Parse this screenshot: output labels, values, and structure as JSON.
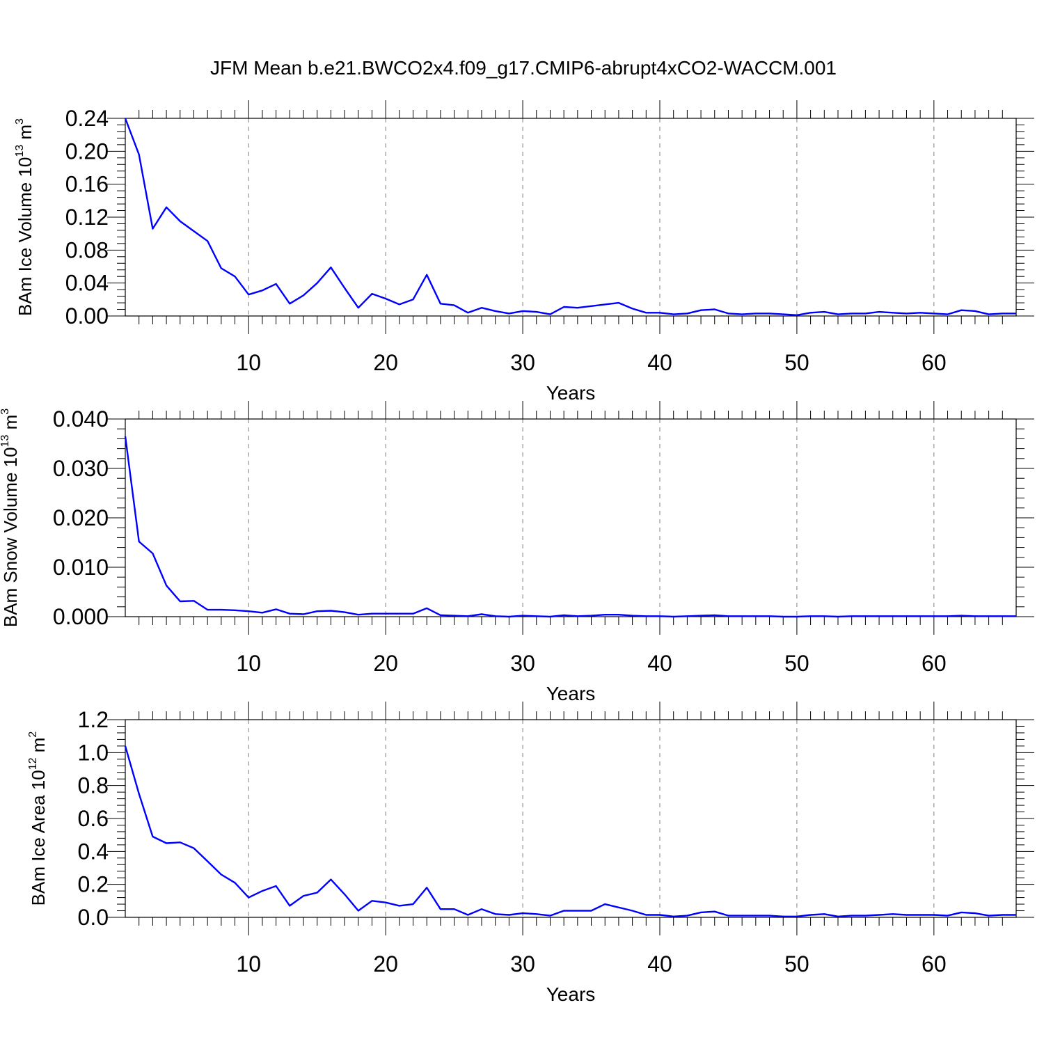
{
  "chart_data": [
    {
      "type": "line",
      "title": "JFM Mean b.e21.BWCO2x4.f09_g17.CMIP6-abrupt4xCO2-WACCM.001",
      "xlabel": "Years",
      "ylabel": {
        "main": "BAm Ice Volume 10",
        "exp": "13",
        "unit": " m",
        "unit_exp": "3"
      },
      "xlim": [
        1,
        66
      ],
      "ylim": [
        0,
        0.24
      ],
      "x_ticks": [
        10,
        20,
        30,
        40,
        50,
        60
      ],
      "x_tick_labels": [
        "10",
        "20",
        "30",
        "40",
        "50",
        "60"
      ],
      "y_ticks": [
        0,
        0.04,
        0.08,
        0.12,
        0.16,
        0.2,
        0.24
      ],
      "y_tick_labels": [
        "0.00",
        "0.04",
        "0.08",
        "0.12",
        "0.16",
        "0.20",
        "0.24"
      ],
      "grid": "vertical dashed at major x ticks",
      "line_color": "#0000ff",
      "series": [
        {
          "name": "BAm Ice Volume",
          "x": [
            1,
            2,
            3,
            4,
            5,
            6,
            7,
            8,
            9,
            10,
            11,
            12,
            13,
            14,
            15,
            16,
            17,
            18,
            19,
            20,
            21,
            22,
            23,
            24,
            25,
            26,
            27,
            28,
            29,
            30,
            31,
            32,
            33,
            34,
            35,
            36,
            37,
            38,
            39,
            40,
            41,
            42,
            43,
            44,
            45,
            46,
            47,
            48,
            49,
            50,
            51,
            52,
            53,
            54,
            55,
            56,
            57,
            58,
            59,
            60,
            61,
            62,
            63,
            64,
            65,
            66
          ],
          "values": [
            0.24,
            0.196,
            0.106,
            0.132,
            0.115,
            0.103,
            0.091,
            0.058,
            0.048,
            0.026,
            0.031,
            0.039,
            0.015,
            0.025,
            0.04,
            0.059,
            0.034,
            0.01,
            0.027,
            0.021,
            0.014,
            0.02,
            0.05,
            0.015,
            0.013,
            0.004,
            0.01,
            0.006,
            0.003,
            0.006,
            0.005,
            0.002,
            0.011,
            0.01,
            0.012,
            0.014,
            0.016,
            0.009,
            0.004,
            0.004,
            0.002,
            0.003,
            0.007,
            0.008,
            0.003,
            0.002,
            0.003,
            0.003,
            0.002,
            0.001,
            0.004,
            0.005,
            0.002,
            0.003,
            0.003,
            0.005,
            0.004,
            0.003,
            0.004,
            0.003,
            0.002,
            0.007,
            0.006,
            0.002,
            0.003,
            0.003
          ]
        }
      ]
    },
    {
      "type": "line",
      "xlabel": "Years",
      "ylabel": {
        "main": "BAm Snow Volume 10",
        "exp": "13",
        "unit": " m",
        "unit_exp": "3"
      },
      "xlim": [
        1,
        66
      ],
      "ylim": [
        0,
        0.04
      ],
      "x_ticks": [
        10,
        20,
        30,
        40,
        50,
        60
      ],
      "x_tick_labels": [
        "10",
        "20",
        "30",
        "40",
        "50",
        "60"
      ],
      "y_ticks": [
        0,
        0.01,
        0.02,
        0.03,
        0.04
      ],
      "y_tick_labels": [
        "0.000",
        "0.010",
        "0.020",
        "0.030",
        "0.040"
      ],
      "grid": "vertical dashed at major x ticks",
      "line_color": "#0000ff",
      "series": [
        {
          "name": "BAm Snow Volume",
          "x": [
            1,
            2,
            3,
            4,
            5,
            6,
            7,
            8,
            9,
            10,
            11,
            12,
            13,
            14,
            15,
            16,
            17,
            18,
            19,
            20,
            21,
            22,
            23,
            24,
            25,
            26,
            27,
            28,
            29,
            30,
            31,
            32,
            33,
            34,
            35,
            36,
            37,
            38,
            39,
            40,
            41,
            42,
            43,
            44,
            45,
            46,
            47,
            48,
            49,
            50,
            51,
            52,
            53,
            54,
            55,
            56,
            57,
            58,
            59,
            60,
            61,
            62,
            63,
            64,
            65,
            66
          ],
          "values": [
            0.0365,
            0.0152,
            0.0128,
            0.0063,
            0.0031,
            0.0032,
            0.0014,
            0.0014,
            0.0013,
            0.0011,
            0.0008,
            0.0015,
            0.0006,
            0.0005,
            0.0011,
            0.0012,
            0.0009,
            0.0004,
            0.0006,
            0.0006,
            0.0006,
            0.0006,
            0.0017,
            0.0003,
            0.0002,
            0.0001,
            0.0005,
            0.0001,
            0.0,
            0.0002,
            0.0001,
            0.0,
            0.0003,
            0.0001,
            0.0002,
            0.0004,
            0.0004,
            0.0002,
            0.0001,
            0.0001,
            0.0,
            0.0001,
            0.0002,
            0.0003,
            0.0001,
            0.0001,
            0.0001,
            0.0001,
            0.0,
            0.0,
            0.0001,
            0.0001,
            0.0,
            0.0001,
            0.0001,
            0.0001,
            0.0001,
            0.0001,
            0.0001,
            0.0001,
            0.0001,
            0.0002,
            0.0001,
            0.0001,
            0.0001,
            0.0001
          ]
        }
      ]
    },
    {
      "type": "line",
      "xlabel": "Years",
      "ylabel": {
        "main": "BAm Ice Area 10",
        "exp": "12",
        "unit": " m",
        "unit_exp": "2"
      },
      "xlim": [
        1,
        66
      ],
      "ylim": [
        0,
        1.2
      ],
      "x_ticks": [
        10,
        20,
        30,
        40,
        50,
        60
      ],
      "x_tick_labels": [
        "10",
        "20",
        "30",
        "40",
        "50",
        "60"
      ],
      "y_ticks": [
        0,
        0.2,
        0.4,
        0.6,
        0.8,
        1.0,
        1.2
      ],
      "y_tick_labels": [
        "0.0",
        "0.2",
        "0.4",
        "0.6",
        "0.8",
        "1.0",
        "1.2"
      ],
      "grid": "vertical dashed at major x ticks",
      "line_color": "#0000ff",
      "series": [
        {
          "name": "BAm Ice Area",
          "x": [
            1,
            2,
            3,
            4,
            5,
            6,
            7,
            8,
            9,
            10,
            11,
            12,
            13,
            14,
            15,
            16,
            17,
            18,
            19,
            20,
            21,
            22,
            23,
            24,
            25,
            26,
            27,
            28,
            29,
            30,
            31,
            32,
            33,
            34,
            35,
            36,
            37,
            38,
            39,
            40,
            41,
            42,
            43,
            44,
            45,
            46,
            47,
            48,
            49,
            50,
            51,
            52,
            53,
            54,
            55,
            56,
            57,
            58,
            59,
            60,
            61,
            62,
            63,
            64,
            65,
            66
          ],
          "values": [
            1.04,
            0.75,
            0.49,
            0.45,
            0.455,
            0.42,
            0.34,
            0.26,
            0.21,
            0.12,
            0.16,
            0.19,
            0.07,
            0.13,
            0.15,
            0.23,
            0.14,
            0.04,
            0.1,
            0.09,
            0.07,
            0.08,
            0.18,
            0.05,
            0.05,
            0.015,
            0.05,
            0.02,
            0.015,
            0.025,
            0.02,
            0.01,
            0.04,
            0.04,
            0.04,
            0.08,
            0.06,
            0.04,
            0.015,
            0.015,
            0.005,
            0.01,
            0.03,
            0.035,
            0.01,
            0.01,
            0.01,
            0.01,
            0.005,
            0.005,
            0.015,
            0.02,
            0.005,
            0.01,
            0.01,
            0.015,
            0.02,
            0.015,
            0.015,
            0.015,
            0.01,
            0.03,
            0.025,
            0.01,
            0.015,
            0.015
          ]
        }
      ]
    }
  ]
}
